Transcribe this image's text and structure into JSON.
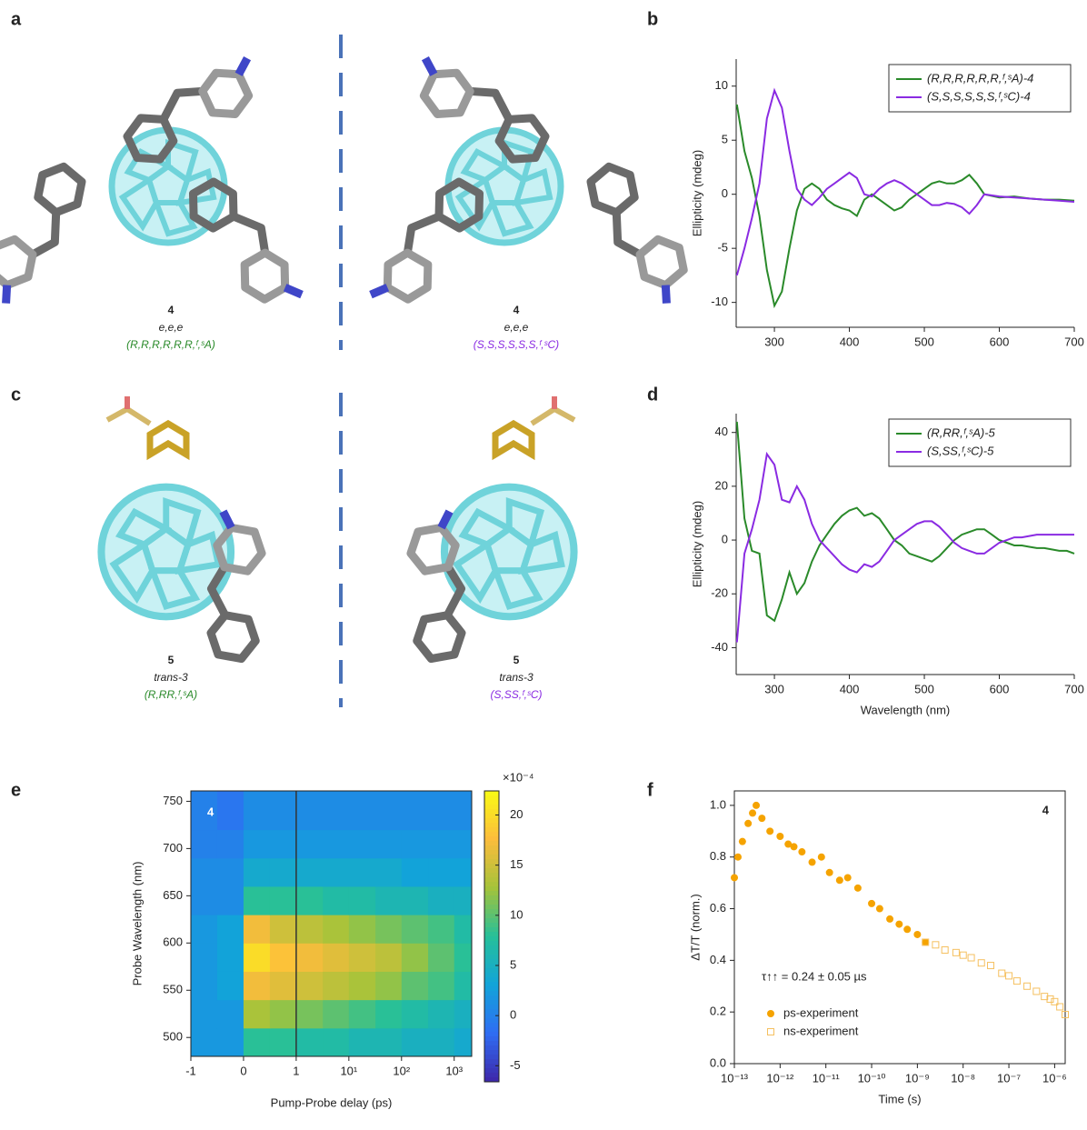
{
  "panel_labels": [
    "a",
    "b",
    "c",
    "d",
    "e",
    "f"
  ],
  "molecules": [
    {
      "number": "4",
      "conformation": "e,e,e",
      "configuration": "(R,R,R,R,R,R,ᶠ,ˢA)"
    },
    {
      "number": "4",
      "conformation": "e,e,e",
      "configuration": "(S,S,S,S,S,S,ᶠ,ˢC)"
    },
    {
      "number": "5",
      "conformation": "trans-3",
      "configuration": "(R,RR,ᶠ,ˢA)"
    },
    {
      "number": "5",
      "conformation": "trans-3",
      "configuration": "(S,SS,ᶠ,ˢC)"
    }
  ],
  "chart_data": [
    {
      "type": "line",
      "y_label": "Ellipticity (mdeg)",
      "legend": "upper right",
      "xlim": [
        249,
        700
      ],
      "xticks": [
        300,
        400,
        500,
        600,
        700
      ],
      "ylim": [
        -12.3,
        12.5
      ],
      "yticks": [
        -10,
        -5,
        0,
        5,
        10
      ],
      "x": [
        250,
        260,
        270,
        280,
        290,
        300,
        310,
        320,
        330,
        340,
        350,
        360,
        370,
        380,
        390,
        400,
        410,
        420,
        430,
        440,
        450,
        460,
        470,
        480,
        490,
        500,
        510,
        520,
        530,
        540,
        550,
        560,
        570,
        580,
        600,
        620,
        640,
        660,
        680,
        700
      ],
      "series": [
        {
          "name": "(R,R,R,R,R,R,ᶠ,ˢA)-4",
          "color": "#2a8a2a",
          "values": [
            8.3,
            4,
            1.5,
            -2,
            -7,
            -10.3,
            -9,
            -5,
            -1.5,
            0.5,
            1,
            0.5,
            -0.5,
            -1,
            -1.3,
            -1.5,
            -2,
            -0.5,
            0,
            -0.5,
            -1,
            -1.5,
            -1.2,
            -0.5,
            0,
            0.5,
            1,
            1.2,
            1,
            1,
            1.3,
            1.8,
            1,
            0,
            -0.3,
            -0.2,
            -0.4,
            -0.5,
            -0.5,
            -0.6
          ]
        },
        {
          "name": "(S,S,S,S,S,S,ᶠ,ˢC)-4",
          "color": "#8a2be2",
          "values": [
            -7.5,
            -5,
            -2.2,
            1,
            7,
            9.6,
            8,
            4,
            0.5,
            -0.5,
            -1,
            -0.3,
            0.5,
            1,
            1.5,
            2,
            1.5,
            0,
            -0.2,
            0.5,
            1,
            1.3,
            1,
            0.5,
            0,
            -0.5,
            -1,
            -1,
            -0.8,
            -0.9,
            -1.2,
            -1.8,
            -1,
            0,
            -0.2,
            -0.3,
            -0.4,
            -0.5,
            -0.6,
            -0.7
          ]
        }
      ]
    },
    {
      "type": "line",
      "x_label": "Wavelength (nm)",
      "y_label": "Ellipticity (mdeg)",
      "legend": "upper right",
      "xlim": [
        249,
        700
      ],
      "xticks": [
        300,
        400,
        500,
        600,
        700
      ],
      "ylim": [
        -50,
        47
      ],
      "yticks": [
        -40,
        -20,
        0,
        20,
        40
      ],
      "x": [
        250,
        260,
        270,
        280,
        290,
        300,
        310,
        320,
        330,
        340,
        350,
        360,
        370,
        380,
        390,
        400,
        410,
        420,
        430,
        440,
        450,
        460,
        470,
        480,
        490,
        500,
        510,
        520,
        530,
        540,
        550,
        560,
        570,
        580,
        590,
        600,
        610,
        620,
        630,
        640,
        650,
        660,
        670,
        680,
        690,
        700
      ],
      "series": [
        {
          "name": "(R,RR,ᶠ,ˢA)-5",
          "color": "#2a8a2a",
          "values": [
            44,
            8,
            -4,
            -5,
            -28,
            -30,
            -22,
            -12,
            -20,
            -16,
            -8,
            -2,
            2,
            6,
            9,
            11,
            12,
            9,
            10,
            8,
            4,
            0,
            -2,
            -5,
            -6,
            -7,
            -8,
            -6,
            -3,
            0,
            2,
            3,
            4,
            4,
            2,
            0,
            -1,
            -2,
            -2,
            -2.5,
            -3,
            -3,
            -3.5,
            -4,
            -4,
            -5
          ]
        },
        {
          "name": "(S,SS,ᶠ,ˢC)-5",
          "color": "#8a2be2",
          "values": [
            -38,
            -5,
            4,
            15,
            32,
            28,
            15,
            14,
            20,
            15,
            6,
            0,
            -3,
            -6,
            -9,
            -11,
            -12,
            -9,
            -10,
            -8,
            -4,
            0,
            2,
            4,
            6,
            7,
            7,
            5,
            2,
            -1,
            -3,
            -4,
            -5,
            -5,
            -3,
            -1,
            0,
            1,
            1,
            1.5,
            2,
            2,
            2,
            2,
            2,
            2
          ]
        }
      ]
    },
    {
      "type": "heatmap",
      "x_label": "Pump-Probe delay (ps)",
      "y_label": "Probe Wavelength (nm)",
      "label": "4",
      "xscale": "symlog",
      "linthresh": 1,
      "vline": 1,
      "xlim": [
        -1,
        2150
      ],
      "xticks": [
        -1,
        0,
        1,
        {
          "value": 10,
          "label": "10¹"
        },
        {
          "value": 100,
          "label": "10²"
        },
        {
          "value": 1000,
          "label": "10³"
        }
      ],
      "ylim": [
        480,
        761
      ],
      "yticks": [
        500,
        550,
        600,
        650,
        700,
        750
      ],
      "x_bins": [
        -1,
        -0.5,
        0,
        0.5,
        1,
        3.2,
        10,
        32,
        100,
        320,
        1000,
        2150
      ],
      "y_bins": [
        480,
        510,
        540,
        570,
        600,
        630,
        660,
        690,
        720,
        761
      ],
      "z": [
        [
          2,
          2,
          8,
          8,
          7,
          7,
          6,
          6,
          5,
          5,
          4
        ],
        [
          2,
          2,
          13,
          12,
          11,
          10,
          9,
          8,
          7,
          6,
          5
        ],
        [
          2,
          3,
          17,
          16,
          15,
          14,
          13,
          12,
          10,
          9,
          7
        ],
        [
          2,
          3,
          20,
          18,
          17,
          16,
          15,
          14,
          12,
          10,
          8
        ],
        [
          2,
          3,
          17,
          15,
          14,
          13,
          12,
          11,
          10,
          9,
          7
        ],
        [
          1,
          1,
          8,
          8,
          8,
          7,
          7,
          6,
          6,
          5,
          5
        ],
        [
          1,
          1,
          4,
          4,
          4,
          4,
          4,
          4,
          3,
          3,
          3
        ],
        [
          0,
          0,
          2,
          2,
          2,
          2,
          2,
          2,
          2,
          2,
          2
        ],
        [
          0,
          -1,
          1,
          1,
          1,
          1,
          1,
          1,
          1,
          1,
          1
        ]
      ],
      "colorbar": {
        "label": "×10⁻⁴",
        "lim": [
          -6.6,
          22.4
        ],
        "ticks": [
          -5,
          0,
          5,
          10,
          15,
          20
        ]
      }
    },
    {
      "type": "scatter",
      "x_label": "Time (s)",
      "y_label": "ΔT/T (norm.)",
      "label": "4",
      "annotation": "τ↑↑ = 0.24 ± 0.05 µs",
      "xscale": "log",
      "legend": "lower left",
      "xlim": [
        1e-13,
        1.7e-06
      ],
      "xticks": [
        {
          "value": 1e-13,
          "label": "10⁻¹³"
        },
        {
          "value": 1e-12,
          "label": "10⁻¹²"
        },
        {
          "value": 1e-11,
          "label": "10⁻¹¹"
        },
        {
          "value": 1e-10,
          "label": "10⁻¹⁰"
        },
        {
          "value": 1e-09,
          "label": "10⁻⁹"
        },
        {
          "value": 1e-08,
          "label": "10⁻⁸"
        },
        {
          "value": 1e-07,
          "label": "10⁻⁷"
        },
        {
          "value": 1e-06,
          "label": "10⁻⁶"
        }
      ],
      "ylim": [
        0,
        1.056
      ],
      "yticks": [
        {
          "value": 0,
          "label": "0.0"
        },
        0.2,
        0.4,
        0.6,
        0.8,
        {
          "value": 1,
          "label": "1.0"
        }
      ],
      "series": [
        {
          "name": "ps-experiment",
          "color": "#f5a300",
          "marker": "circle",
          "x": [
            1e-13,
            1.2e-13,
            1.5e-13,
            2e-13,
            2.5e-13,
            3e-13,
            4e-13,
            6e-13,
            1e-12,
            1.5e-12,
            2e-12,
            3e-12,
            5e-12,
            8e-12,
            1.2e-11,
            2e-11,
            3e-11,
            5e-11,
            1e-10,
            1.5e-10,
            2.5e-10,
            4e-10,
            6e-10,
            1e-09,
            1.5e-09
          ],
          "values": [
            0.72,
            0.8,
            0.86,
            0.93,
            0.97,
            1.0,
            0.95,
            0.9,
            0.88,
            0.85,
            0.84,
            0.82,
            0.78,
            0.8,
            0.74,
            0.71,
            0.72,
            0.68,
            0.62,
            0.6,
            0.56,
            0.54,
            0.52,
            0.5,
            0.47
          ]
        },
        {
          "name": "ns-experiment",
          "color": "#f5c060",
          "marker": "square-open",
          "x": [
            1.5e-09,
            2.5e-09,
            4e-09,
            7e-09,
            1e-08,
            1.5e-08,
            2.5e-08,
            4e-08,
            7e-08,
            1e-07,
            1.5e-07,
            2.5e-07,
            4e-07,
            6e-07,
            8e-07,
            1e-06,
            1.3e-06,
            1.7e-06
          ],
          "values": [
            0.47,
            0.46,
            0.44,
            0.43,
            0.42,
            0.41,
            0.39,
            0.38,
            0.35,
            0.34,
            0.32,
            0.3,
            0.28,
            0.26,
            0.25,
            0.24,
            0.22,
            0.19
          ]
        }
      ]
    }
  ]
}
